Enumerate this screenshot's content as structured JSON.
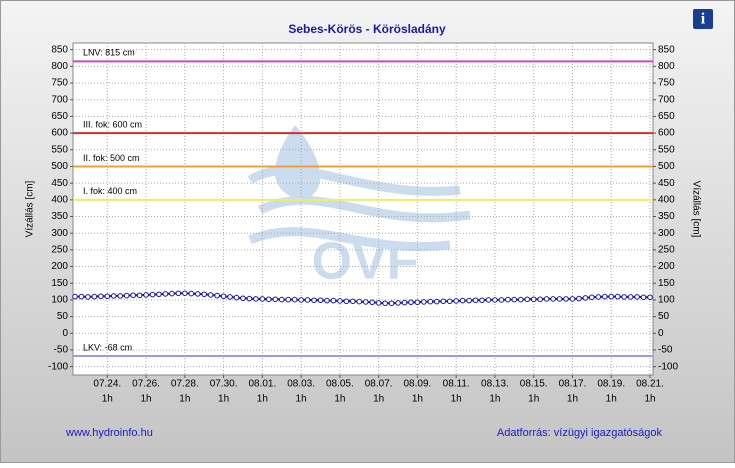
{
  "chart_data": {
    "type": "line",
    "title": "Sebes-Körös - Körösladány",
    "y_label": "Vízállás [cm]",
    "y2_label": "Vízállás [cm]",
    "x_tick_sublabel": "1h",
    "categories": [
      null,
      null,
      null,
      null,
      null,
      "07.24.",
      null,
      null,
      null,
      null,
      null,
      "07.26.",
      null,
      null,
      null,
      null,
      null,
      "07.28.",
      null,
      null,
      null,
      null,
      null,
      "07.30.",
      null,
      null,
      null,
      null,
      null,
      "08.01.",
      null,
      null,
      null,
      null,
      null,
      "08.03.",
      null,
      null,
      null,
      null,
      null,
      "08.05.",
      null,
      null,
      null,
      null,
      null,
      "08.07.",
      null,
      null,
      null,
      null,
      null,
      "08.09.",
      null,
      null,
      null,
      null,
      null,
      "08.11.",
      null,
      null,
      null,
      null,
      null,
      "08.13.",
      null,
      null,
      null,
      null,
      null,
      "08.15.",
      null,
      null,
      null,
      null,
      null,
      "08.17.",
      null,
      null,
      null,
      null,
      null,
      "08.19.",
      null,
      null,
      null,
      null,
      null,
      "08.21."
    ],
    "series": [
      {
        "color": "#1a1aa0",
        "values": [
          110,
          110,
          109,
          110,
          111,
          111,
          112,
          112,
          113,
          114,
          114,
          115,
          116,
          117,
          118,
          119,
          120,
          120,
          119,
          118,
          117,
          115,
          113,
          111,
          109,
          107,
          105,
          104,
          103,
          103,
          102,
          102,
          101,
          101,
          101,
          100,
          100,
          99,
          99,
          98,
          98,
          97,
          96,
          96,
          95,
          94,
          93,
          91,
          90,
          90,
          91,
          92,
          93,
          93,
          94,
          95,
          95,
          96,
          96,
          97,
          98,
          98,
          99,
          99,
          100,
          100,
          100,
          101,
          101,
          101,
          102,
          102,
          102,
          103,
          103,
          103,
          103,
          103,
          104,
          106,
          108,
          109,
          110,
          110,
          110,
          109,
          109,
          109,
          108,
          108
        ]
      }
    ],
    "reference_lines": [
      {
        "label": "LNV: 815 cm",
        "value": 815,
        "color": "#cc44cc"
      },
      {
        "label": "III. fok: 600 cm",
        "value": 600,
        "color": "#d03030"
      },
      {
        "label": "II. fok: 500 cm",
        "value": 500,
        "color": "#f0a030"
      },
      {
        "label": "I. fok: 400 cm",
        "value": 400,
        "color": "#eeee66"
      },
      {
        "label": "LKV: -68 cm",
        "value": -68,
        "color": "#9999ee"
      }
    ],
    "ylim": [
      -125,
      870
    ],
    "yticks": [
      -100,
      -50,
      0,
      50,
      100,
      150,
      200,
      250,
      300,
      350,
      400,
      450,
      500,
      550,
      600,
      650,
      700,
      750,
      800,
      850
    ],
    "grid": true
  },
  "page": {
    "source_url": "www.hydroinfo.hu",
    "data_source": "Adatforrás: vízügyi igazgatóságok",
    "info_icon": "i",
    "watermark": "OVF"
  }
}
